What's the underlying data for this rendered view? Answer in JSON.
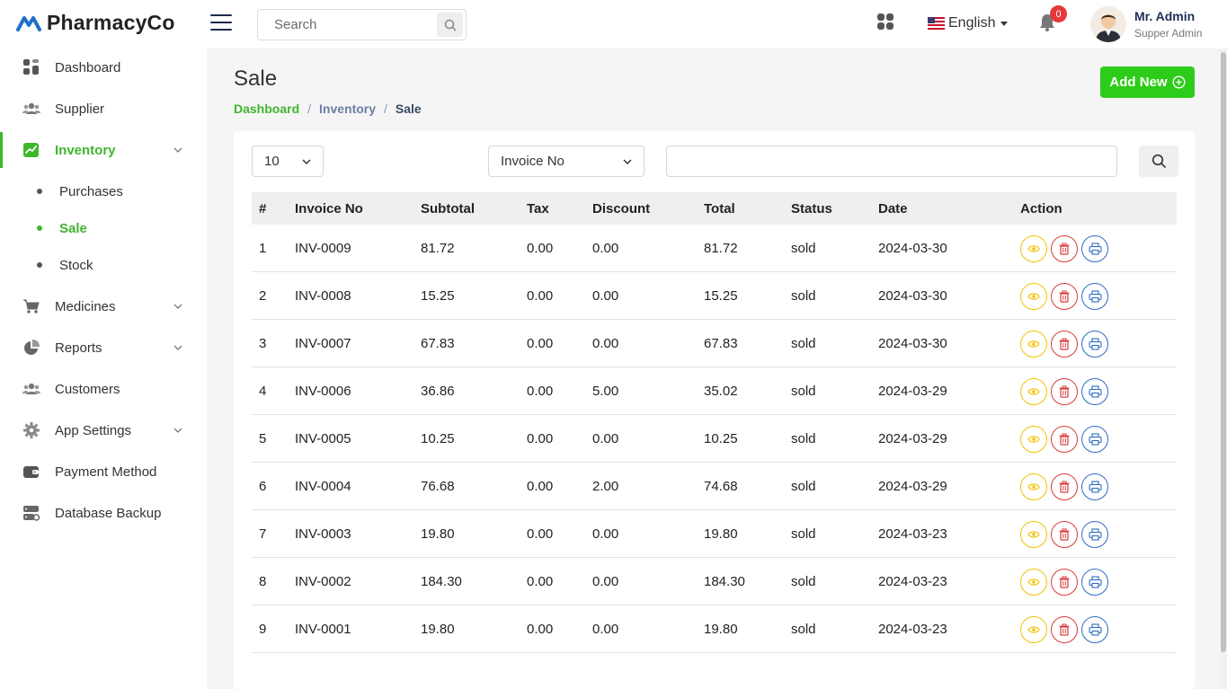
{
  "app": {
    "brand": "PharmacyCo"
  },
  "header": {
    "search_placeholder": "Search",
    "language": "English",
    "notifications_count": "0",
    "user_name": "Mr. Admin",
    "user_role": "Supper Admin"
  },
  "sidebar": {
    "items": [
      {
        "label": "Dashboard",
        "icon": "dashboard-icon"
      },
      {
        "label": "Supplier",
        "icon": "users-icon"
      },
      {
        "label": "Inventory",
        "icon": "chart-icon",
        "active": true
      },
      {
        "label": "Medicines",
        "icon": "cart-icon"
      },
      {
        "label": "Reports",
        "icon": "pie-chart-icon"
      },
      {
        "label": "Customers",
        "icon": "users-icon"
      },
      {
        "label": "App Settings",
        "icon": "gear-icon"
      },
      {
        "label": "Payment Method",
        "icon": "wallet-icon"
      },
      {
        "label": "Database Backup",
        "icon": "server-icon"
      }
    ],
    "sub_items": [
      {
        "label": "Purchases"
      },
      {
        "label": "Sale",
        "active": true
      },
      {
        "label": "Stock"
      }
    ]
  },
  "page": {
    "title": "Sale",
    "breadcrumb": [
      "Dashboard",
      "Inventory",
      "Sale"
    ],
    "add_button": "Add New"
  },
  "filters": {
    "per_page": "10",
    "search_field": "Invoice No",
    "search_value": ""
  },
  "table": {
    "headers": [
      "#",
      "Invoice No",
      "Subtotal",
      "Tax",
      "Discount",
      "Total",
      "Status",
      "Date",
      "Action"
    ],
    "rows": [
      [
        "1",
        "INV-0009",
        "81.72",
        "0.00",
        "0.00",
        "81.72",
        "sold",
        "2024-03-30"
      ],
      [
        "2",
        "INV-0008",
        "15.25",
        "0.00",
        "0.00",
        "15.25",
        "sold",
        "2024-03-30"
      ],
      [
        "3",
        "INV-0007",
        "67.83",
        "0.00",
        "0.00",
        "67.83",
        "sold",
        "2024-03-30"
      ],
      [
        "4",
        "INV-0006",
        "36.86",
        "0.00",
        "5.00",
        "35.02",
        "sold",
        "2024-03-29"
      ],
      [
        "5",
        "INV-0005",
        "10.25",
        "0.00",
        "0.00",
        "10.25",
        "sold",
        "2024-03-29"
      ],
      [
        "6",
        "INV-0004",
        "76.68",
        "0.00",
        "2.00",
        "74.68",
        "sold",
        "2024-03-29"
      ],
      [
        "7",
        "INV-0003",
        "19.80",
        "0.00",
        "0.00",
        "19.80",
        "sold",
        "2024-03-23"
      ],
      [
        "8",
        "INV-0002",
        "184.30",
        "0.00",
        "0.00",
        "184.30",
        "sold",
        "2024-03-23"
      ],
      [
        "9",
        "INV-0001",
        "19.80",
        "0.00",
        "0.00",
        "19.80",
        "sold",
        "2024-03-23"
      ]
    ]
  },
  "colors": {
    "accent": "#3fb62d",
    "add_button": "#2ecc1a",
    "view": "#f2c200",
    "delete": "#d93a3a",
    "print": "#2d6cc0"
  }
}
